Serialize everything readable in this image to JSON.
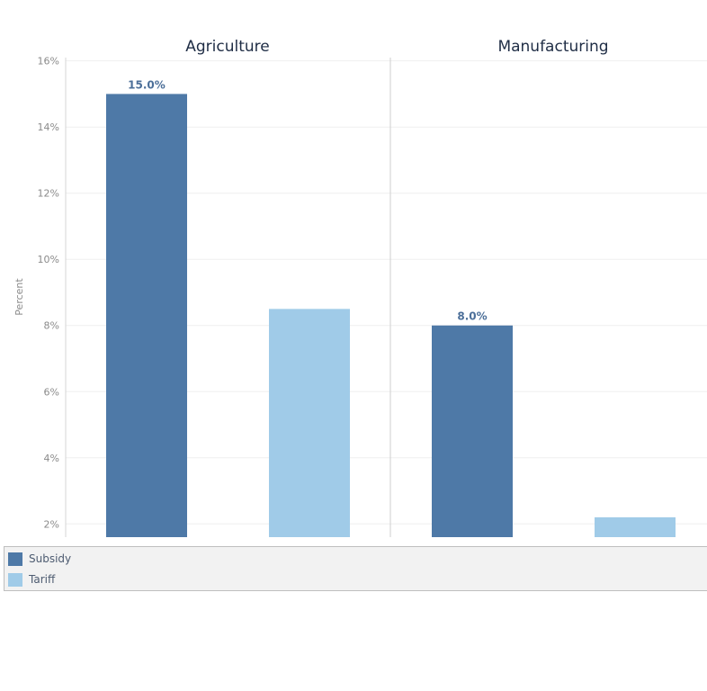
{
  "chart_data": {
    "type": "bar",
    "ylabel": "Percent",
    "ylim": [
      1.6,
      16.1
    ],
    "yticks": [
      "2%",
      "4%",
      "6%",
      "8%",
      "10%",
      "12%",
      "14%",
      "16%"
    ],
    "yticks_values": [
      2,
      4,
      6,
      8,
      10,
      12,
      14,
      16
    ],
    "grid": true,
    "legend_placement": "bottom",
    "panels": [
      {
        "title": "Agriculture",
        "bars": [
          {
            "series": "Subsidy",
            "value": 15.0,
            "label": "15.0%"
          },
          {
            "series": "Tariff",
            "value": 8.5,
            "label": ""
          }
        ]
      },
      {
        "title": "Manufacturing",
        "bars": [
          {
            "series": "Subsidy",
            "value": 8.0,
            "label": "8.0%"
          },
          {
            "series": "Tariff",
            "value": 2.2,
            "label": ""
          }
        ]
      }
    ],
    "series": [
      {
        "name": "Subsidy",
        "color": "#4e79a7"
      },
      {
        "name": "Tariff",
        "color": "#a0cbe8"
      }
    ]
  }
}
